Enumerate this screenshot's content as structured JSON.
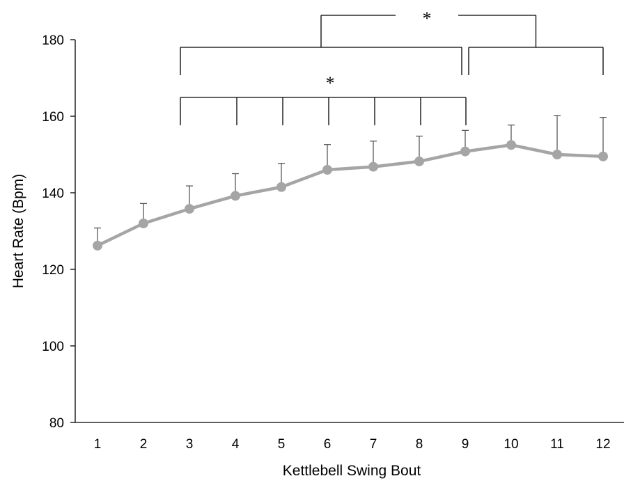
{
  "chart_data": {
    "type": "line",
    "title": "",
    "xlabel": "Kettlebell Swing Bout",
    "ylabel": "Heart Rate (Bpm)",
    "categories": [
      "1",
      "2",
      "3",
      "4",
      "5",
      "6",
      "7",
      "8",
      "9",
      "10",
      "11",
      "12"
    ],
    "series": [
      {
        "values": [
          126.2,
          132.0,
          135.8,
          139.2,
          141.5,
          146.0,
          146.8,
          148.2,
          150.8,
          152.5,
          150.0,
          149.5
        ],
        "error_upper": [
          4.6,
          5.2,
          6.0,
          5.8,
          6.2,
          6.6,
          6.7,
          6.6,
          5.5,
          5.2,
          10.2,
          10.2
        ],
        "color": "#a5a5a5"
      }
    ],
    "ylim": [
      80,
      180
    ],
    "yticks": [
      "80",
      "100",
      "120",
      "140",
      "160",
      "180"
    ],
    "grid": false,
    "legend": "none",
    "significance": [
      {
        "label": "*",
        "from": 3,
        "to_each": [
          4,
          5,
          6,
          7,
          8,
          9
        ]
      },
      {
        "label": "*",
        "group_a": [
          3,
          9
        ],
        "group_b": [
          9,
          12
        ]
      }
    ]
  }
}
